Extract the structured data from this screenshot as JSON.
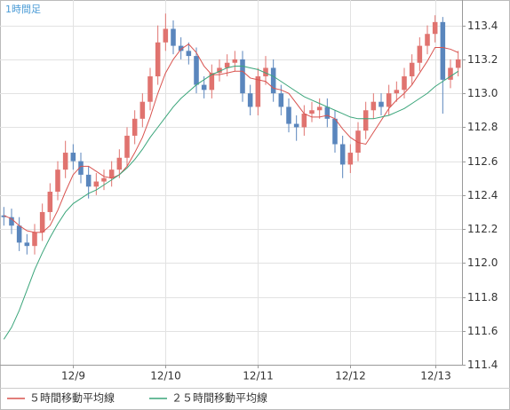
{
  "chart_data": {
    "type": "candlestick",
    "title": "1時間足",
    "categories": [
      null,
      null,
      null,
      null,
      null,
      null,
      null,
      null,
      null,
      "12/9",
      null,
      null,
      null,
      null,
      null,
      null,
      null,
      null,
      null,
      null,
      null,
      "12/10",
      null,
      null,
      null,
      null,
      null,
      null,
      null,
      null,
      null,
      null,
      null,
      "12/11",
      null,
      null,
      null,
      null,
      null,
      null,
      null,
      null,
      null,
      null,
      null,
      "12/12",
      null,
      null,
      null,
      null,
      null,
      null,
      null,
      null,
      null,
      null,
      "12/13",
      null,
      null,
      null
    ],
    "open": [
      112.28,
      112.27,
      112.22,
      112.12,
      112.1,
      112.18,
      112.3,
      112.42,
      112.55,
      112.65,
      112.6,
      112.52,
      112.45,
      112.48,
      112.5,
      112.55,
      112.62,
      112.75,
      112.85,
      112.95,
      113.1,
      113.3,
      113.38,
      113.28,
      113.25,
      113.22,
      113.05,
      113.02,
      113.12,
      113.15,
      113.18,
      113.2,
      113.0,
      112.92,
      113.1,
      113.15,
      113.0,
      112.92,
      112.82,
      112.8,
      112.88,
      112.9,
      112.92,
      112.85,
      112.7,
      112.58,
      112.65,
      112.78,
      112.9,
      112.95,
      112.92,
      113.0,
      113.02,
      113.1,
      113.18,
      113.28,
      113.35,
      113.42,
      113.08,
      113.15
    ],
    "high": [
      112.33,
      112.32,
      112.27,
      112.17,
      112.23,
      112.35,
      112.47,
      112.6,
      112.72,
      112.7,
      112.65,
      112.57,
      112.53,
      112.55,
      112.6,
      112.67,
      112.8,
      112.9,
      113.0,
      113.15,
      113.4,
      113.47,
      113.43,
      113.33,
      113.3,
      113.27,
      113.1,
      113.17,
      113.2,
      113.23,
      113.25,
      113.25,
      113.05,
      113.15,
      113.22,
      113.2,
      113.05,
      112.97,
      112.87,
      112.93,
      112.95,
      112.97,
      112.97,
      112.9,
      112.75,
      112.7,
      112.83,
      112.95,
      113.0,
      113.0,
      113.05,
      113.07,
      113.15,
      113.23,
      113.33,
      113.4,
      113.46,
      113.45,
      113.2,
      113.25
    ],
    "low": [
      112.22,
      112.17,
      112.07,
      112.05,
      112.05,
      112.13,
      112.25,
      112.37,
      112.5,
      112.55,
      112.47,
      112.38,
      112.4,
      112.43,
      112.45,
      112.5,
      112.57,
      112.7,
      112.8,
      112.9,
      113.05,
      113.25,
      113.23,
      113.2,
      113.17,
      113.0,
      112.97,
      112.97,
      113.07,
      113.1,
      113.13,
      112.95,
      112.87,
      112.87,
      113.05,
      112.95,
      112.87,
      112.77,
      112.72,
      112.75,
      112.83,
      112.85,
      112.8,
      112.65,
      112.5,
      112.53,
      112.6,
      112.73,
      112.85,
      112.87,
      112.87,
      112.95,
      112.97,
      113.05,
      113.13,
      113.23,
      113.3,
      112.88,
      113.03,
      113.1
    ],
    "close": [
      112.27,
      112.22,
      112.12,
      112.1,
      112.18,
      112.3,
      112.42,
      112.55,
      112.65,
      112.6,
      112.52,
      112.45,
      112.48,
      112.5,
      112.55,
      112.62,
      112.75,
      112.85,
      112.95,
      113.1,
      113.3,
      113.38,
      113.28,
      113.25,
      113.22,
      113.05,
      113.02,
      113.12,
      113.15,
      113.18,
      113.2,
      113.0,
      112.92,
      113.1,
      113.15,
      113.0,
      112.92,
      112.82,
      112.8,
      112.88,
      112.9,
      112.92,
      112.85,
      112.7,
      112.58,
      112.65,
      112.78,
      112.9,
      112.95,
      112.92,
      113.0,
      113.02,
      113.1,
      113.18,
      113.28,
      113.35,
      113.42,
      113.08,
      113.15,
      113.2
    ],
    "up_color": "#e0736f",
    "down_color": "#5a86bd",
    "series": [
      {
        "name": "５時間移動平均線",
        "color": "#d9534f",
        "values": [
          112.28,
          112.26,
          112.22,
          112.19,
          112.18,
          112.18,
          112.22,
          112.31,
          112.42,
          112.52,
          112.57,
          112.57,
          112.54,
          112.51,
          112.5,
          112.52,
          112.57,
          112.65,
          112.74,
          112.86,
          113.0,
          113.12,
          113.2,
          113.26,
          113.29,
          113.24,
          113.16,
          113.11,
          113.11,
          113.12,
          113.13,
          113.13,
          113.09,
          113.08,
          113.07,
          113.03,
          113.02,
          113.0,
          112.94,
          112.88,
          112.86,
          112.86,
          112.87,
          112.85,
          112.79,
          112.74,
          112.71,
          112.7,
          112.77,
          112.84,
          112.91,
          112.96,
          113.0,
          113.05,
          113.12,
          113.19,
          113.27,
          113.27,
          113.26,
          113.24
        ]
      },
      {
        "name": "２５時間移動平均線",
        "color": "#3aa57a",
        "values": [
          111.55,
          111.62,
          111.72,
          111.84,
          111.96,
          112.06,
          112.15,
          112.23,
          112.3,
          112.35,
          112.38,
          112.41,
          112.43,
          112.46,
          112.49,
          112.52,
          112.56,
          112.61,
          112.67,
          112.74,
          112.8,
          112.86,
          112.92,
          112.97,
          113.01,
          113.05,
          113.08,
          113.11,
          113.13,
          113.15,
          113.16,
          113.16,
          113.15,
          113.14,
          113.12,
          113.1,
          113.07,
          113.04,
          113.01,
          112.98,
          112.96,
          112.94,
          112.92,
          112.9,
          112.88,
          112.86,
          112.85,
          112.85,
          112.85,
          112.86,
          112.87,
          112.89,
          112.91,
          112.94,
          112.97,
          113.0,
          113.04,
          113.07,
          113.1,
          113.13
        ]
      }
    ],
    "ylim": [
      111.4,
      113.55
    ],
    "yticks": [
      {
        "value": 111.4,
        "label": "111.4"
      },
      {
        "value": 111.6,
        "label": "111.6"
      },
      {
        "value": 111.8,
        "label": "111.8"
      },
      {
        "value": 112.0,
        "label": "112.0"
      },
      {
        "value": 112.2,
        "label": "112.2"
      },
      {
        "value": 112.4,
        "label": "112.4"
      },
      {
        "value": 112.6,
        "label": "112.6"
      },
      {
        "value": 112.8,
        "label": "112.8"
      },
      {
        "value": 113.0,
        "label": "113.0"
      },
      {
        "value": 113.2,
        "label": "113.2"
      },
      {
        "value": 113.4,
        "label": "113.4"
      }
    ],
    "grid": true
  }
}
